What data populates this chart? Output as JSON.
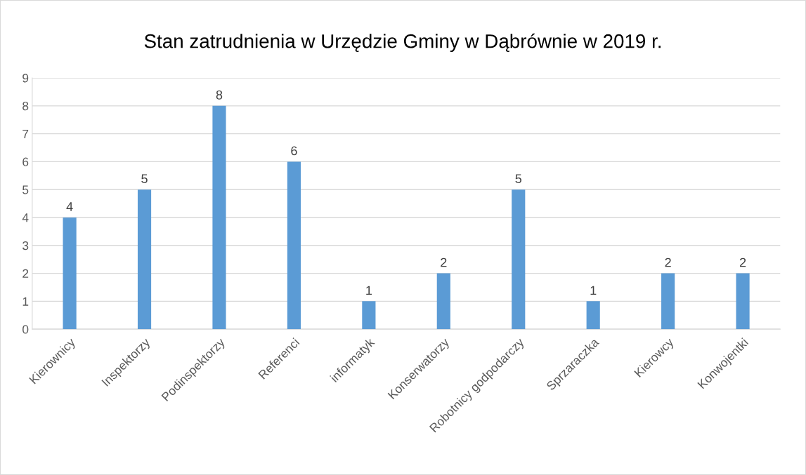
{
  "chart_data": {
    "type": "bar",
    "title": "Stan zatrudnienia w Urzędzie Gminy w Dąbrównie w 2019 r.",
    "categories": [
      "Kierownicy",
      "Inspektorzy",
      "Podinspektorzy",
      "Referenci",
      "informatyk",
      "Konserwatorzy",
      "Robotnicy godpodarczy",
      "Sprzaraczka",
      "Kierowcy",
      "Konwojentki"
    ],
    "values": [
      4,
      5,
      8,
      6,
      1,
      2,
      5,
      1,
      2,
      2
    ],
    "color": "#5b9bd5",
    "ylim": [
      0,
      9
    ],
    "yticks": [
      0,
      1,
      2,
      3,
      4,
      5,
      6,
      7,
      8,
      9
    ],
    "grid": "y",
    "data_labels": true
  }
}
